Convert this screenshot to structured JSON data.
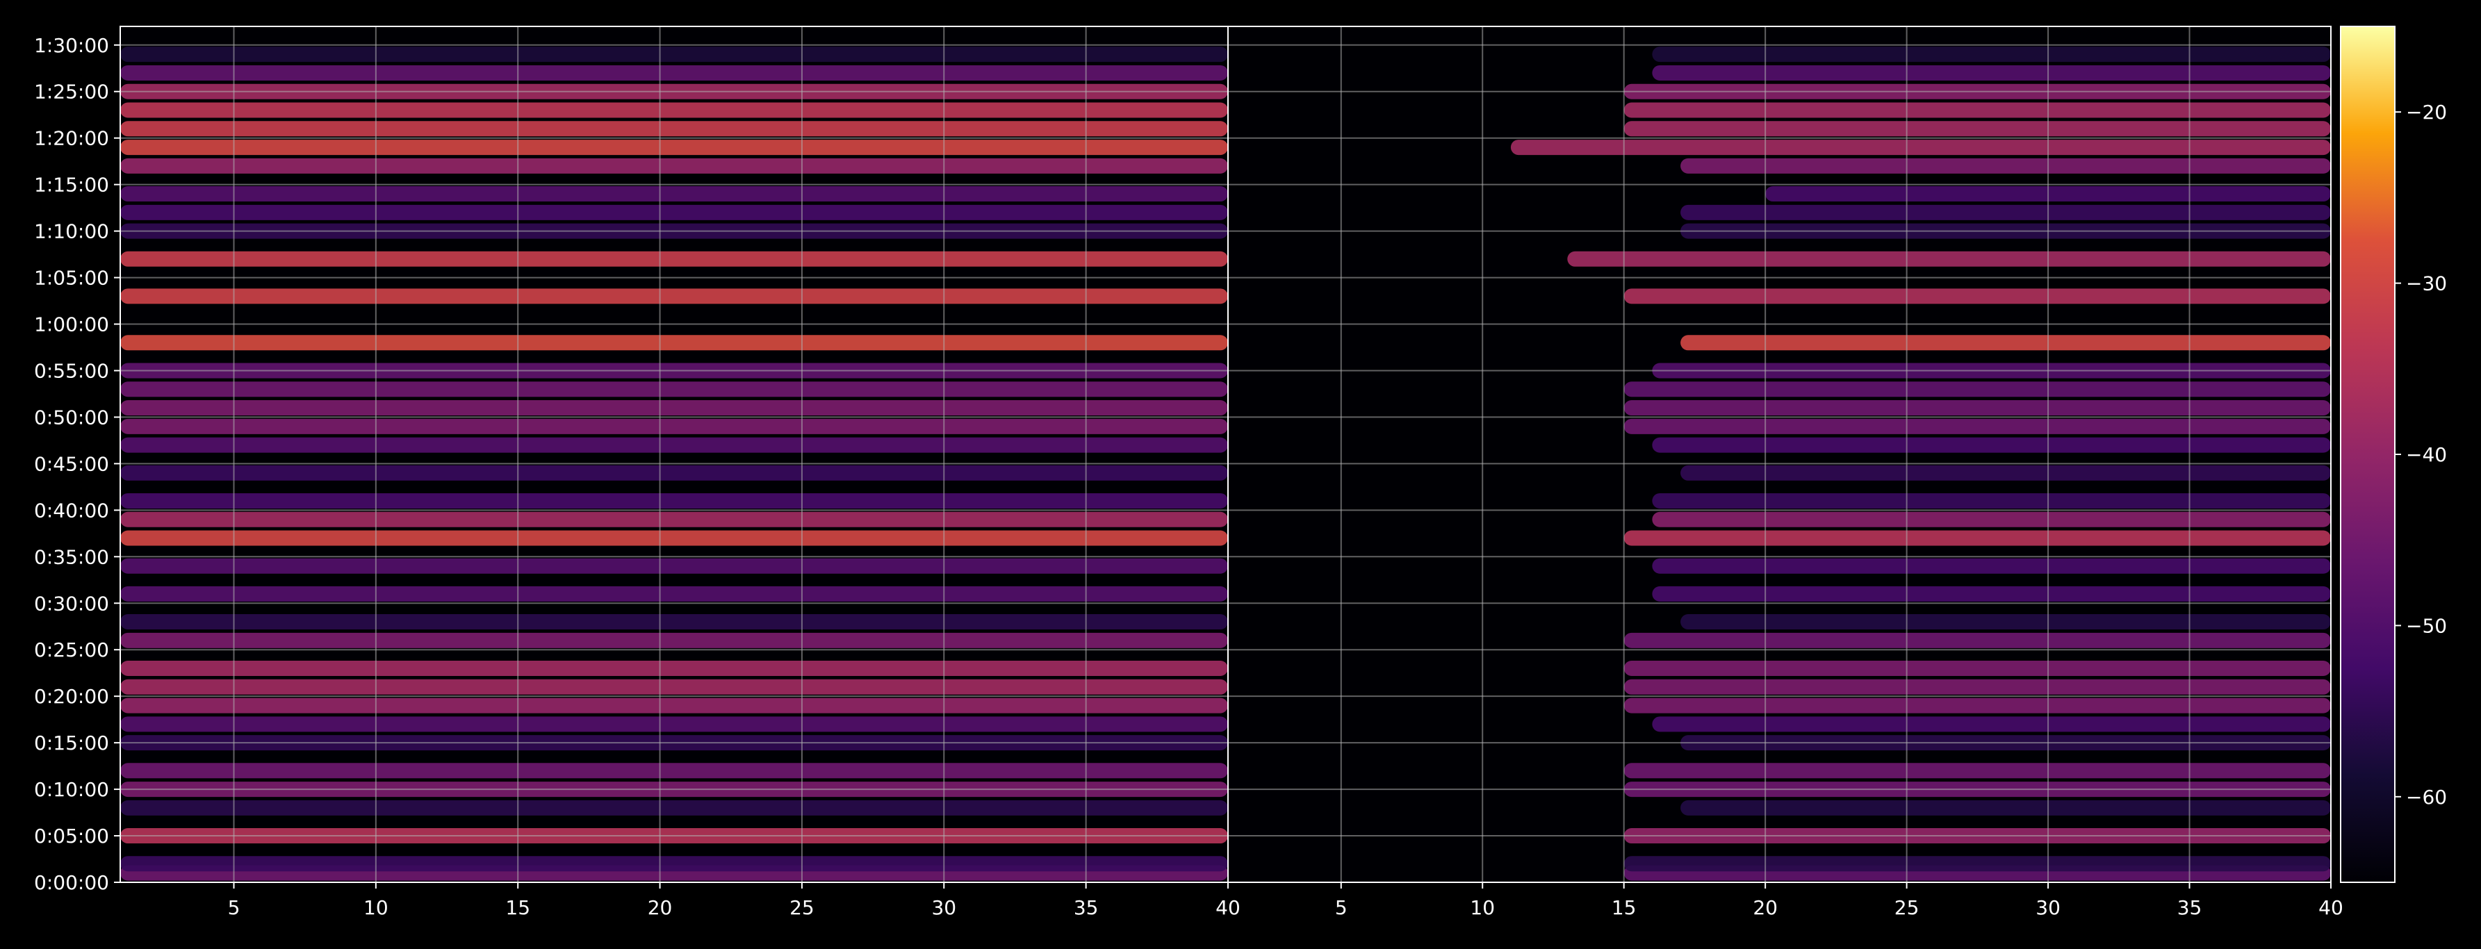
{
  "chart_data": {
    "type": "heatmap",
    "title": "",
    "xlabel": "",
    "ylabel": "",
    "grid": true,
    "panels": [
      {
        "x_ticks": [
          "5",
          "10",
          "15",
          "20",
          "25",
          "30",
          "35",
          "40"
        ],
        "xlim": [
          1,
          40
        ]
      },
      {
        "x_ticks": [
          "5",
          "10",
          "15",
          "20",
          "25",
          "30",
          "35",
          "40"
        ],
        "xlim": [
          1,
          40
        ]
      }
    ],
    "y_ticks": [
      "0:00:00",
      "0:05:00",
      "0:10:00",
      "0:15:00",
      "0:20:00",
      "0:25:00",
      "0:30:00",
      "0:35:00",
      "0:40:00",
      "0:45:00",
      "0:50:00",
      "0:55:00",
      "1:00:00",
      "1:05:00",
      "1:10:00",
      "1:15:00",
      "1:20:00",
      "1:25:00",
      "1:30:00"
    ],
    "ylim_seconds": [
      0,
      5520
    ],
    "colorbar": {
      "ticks": [
        "−20",
        "−30",
        "−40",
        "−50",
        "−60"
      ],
      "tick_values": [
        -20,
        -30,
        -40,
        -50,
        -60
      ],
      "range": [
        -65,
        -15
      ],
      "colormap": "inferno"
    },
    "bands": [
      {
        "time": "0:01:00",
        "left": -46,
        "right": -48,
        "cutoff": 15
      },
      {
        "time": "0:02:00",
        "left": -54,
        "right": -56,
        "cutoff": 15
      },
      {
        "time": "0:05:00",
        "left": -35,
        "right": -40,
        "cutoff": 15
      },
      {
        "time": "0:08:00",
        "left": -56,
        "right": -57,
        "cutoff": 17
      },
      {
        "time": "0:10:00",
        "left": -44,
        "right": -46,
        "cutoff": 15
      },
      {
        "time": "0:12:00",
        "left": -46,
        "right": -46,
        "cutoff": 15
      },
      {
        "time": "0:15:00",
        "left": -55,
        "right": -56,
        "cutoff": 17
      },
      {
        "time": "0:17:00",
        "left": -50,
        "right": -52,
        "cutoff": 16
      },
      {
        "time": "0:19:00",
        "left": -40,
        "right": -44,
        "cutoff": 15
      },
      {
        "time": "0:21:00",
        "left": -38,
        "right": -44,
        "cutoff": 15
      },
      {
        "time": "0:23:00",
        "left": -38,
        "right": -44,
        "cutoff": 15
      },
      {
        "time": "0:26:00",
        "left": -44,
        "right": -46,
        "cutoff": 15
      },
      {
        "time": "0:28:00",
        "left": -56,
        "right": -57,
        "cutoff": 17
      },
      {
        "time": "0:31:00",
        "left": -50,
        "right": -52,
        "cutoff": 16
      },
      {
        "time": "0:34:00",
        "left": -50,
        "right": -52,
        "cutoff": 16
      },
      {
        "time": "0:37:00",
        "left": -30,
        "right": -35,
        "cutoff": 15
      },
      {
        "time": "0:39:00",
        "left": -38,
        "right": -42,
        "cutoff": 16
      },
      {
        "time": "0:41:00",
        "left": -52,
        "right": -54,
        "cutoff": 16
      },
      {
        "time": "0:44:00",
        "left": -54,
        "right": -55,
        "cutoff": 17
      },
      {
        "time": "0:47:00",
        "left": -50,
        "right": -52,
        "cutoff": 16
      },
      {
        "time": "0:49:00",
        "left": -44,
        "right": -46,
        "cutoff": 15
      },
      {
        "time": "0:51:00",
        "left": -44,
        "right": -46,
        "cutoff": 15
      },
      {
        "time": "0:53:00",
        "left": -46,
        "right": -48,
        "cutoff": 15
      },
      {
        "time": "0:55:00",
        "left": -48,
        "right": -50,
        "cutoff": 16
      },
      {
        "time": "0:58:00",
        "left": -29,
        "right": -30,
        "cutoff": 17
      },
      {
        "time": "1:03:00",
        "left": -31,
        "right": -36,
        "cutoff": 15
      },
      {
        "time": "1:07:00",
        "left": -32,
        "right": -38,
        "cutoff": 13
      },
      {
        "time": "1:10:00",
        "left": -55,
        "right": -56,
        "cutoff": 17
      },
      {
        "time": "1:12:00",
        "left": -52,
        "right": -54,
        "cutoff": 17
      },
      {
        "time": "1:14:00",
        "left": -50,
        "right": -52,
        "cutoff": 20
      },
      {
        "time": "1:17:00",
        "left": -40,
        "right": -44,
        "cutoff": 17
      },
      {
        "time": "1:19:00",
        "left": -30,
        "right": -38,
        "cutoff": 11
      },
      {
        "time": "1:21:00",
        "left": -32,
        "right": -38,
        "cutoff": 15
      },
      {
        "time": "1:23:00",
        "left": -34,
        "right": -38,
        "cutoff": 15
      },
      {
        "time": "1:25:00",
        "left": -38,
        "right": -42,
        "cutoff": 15
      },
      {
        "time": "1:27:00",
        "left": -48,
        "right": -50,
        "cutoff": 16
      },
      {
        "time": "1:29:00",
        "left": -58,
        "right": -58,
        "cutoff": 16
      }
    ]
  }
}
